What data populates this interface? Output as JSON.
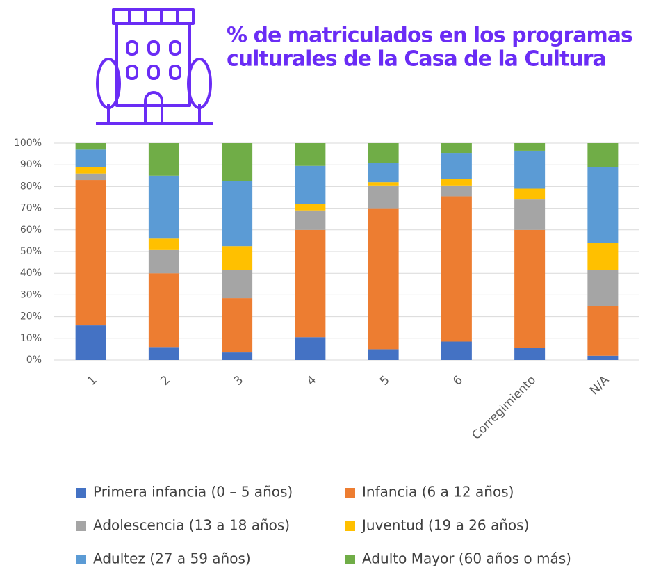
{
  "chart_data": {
    "type": "stacked_bar",
    "title_lines": [
      "% de matriculados en los programas",
      "culturales de la Casa de la Cultura"
    ],
    "categories": [
      "1",
      "2",
      "3",
      "4",
      "5",
      "6",
      "Corregimiento",
      "N/A"
    ],
    "series": [
      {
        "name": "Primera infancia (0 – 5 años)",
        "color": "#4472c4",
        "values": [
          16,
          6,
          3.5,
          10.5,
          5,
          8.5,
          5.5,
          2
        ]
      },
      {
        "name": "Infancia (6 a 12 años)",
        "color": "#ed7d31",
        "values": [
          67,
          34,
          25,
          49.5,
          65,
          67,
          54.5,
          23
        ]
      },
      {
        "name": "Adolescencia (13 a 18 años)",
        "color": "#a5a5a5",
        "values": [
          3,
          11,
          13,
          9,
          10.5,
          5,
          14,
          16.5
        ]
      },
      {
        "name": "Juventud (19 a 26 años)",
        "color": "#ffc000",
        "values": [
          3,
          5,
          11,
          3,
          1.5,
          3,
          5,
          12.5
        ]
      },
      {
        "name": "Adultez (27 a 59 años)",
        "color": "#5b9bd5",
        "values": [
          8,
          29,
          30,
          17.5,
          9,
          12,
          17.5,
          35
        ]
      },
      {
        "name": "Adulto Mayor (60 años o más)",
        "color": "#70ad47",
        "values": [
          3,
          15,
          17.5,
          10.5,
          9,
          4.5,
          3.5,
          11
        ]
      }
    ],
    "ylim": [
      0,
      100
    ],
    "yticks": [
      {
        "value": 0,
        "label": "0%"
      },
      {
        "value": 10,
        "label": "10%"
      },
      {
        "value": 20,
        "label": "20%"
      },
      {
        "value": 30,
        "label": "30%"
      },
      {
        "value": 40,
        "label": "40%"
      },
      {
        "value": 50,
        "label": "50%"
      },
      {
        "value": 60,
        "label": "60%"
      },
      {
        "value": 70,
        "label": "70%"
      },
      {
        "value": 80,
        "label": "80%"
      },
      {
        "value": 90,
        "label": "90%"
      },
      {
        "value": 100,
        "label": "100%"
      }
    ],
    "grid": true
  }
}
